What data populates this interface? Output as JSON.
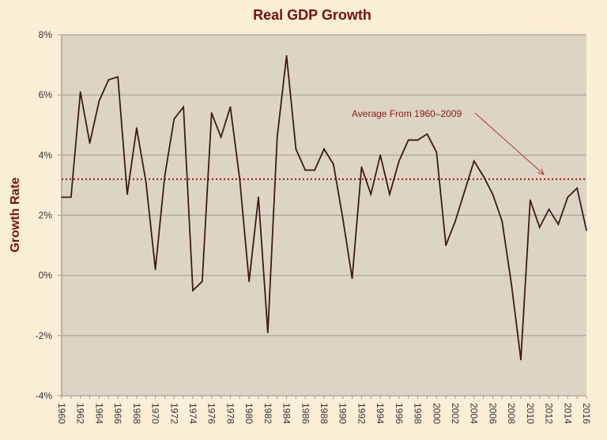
{
  "chart_data": {
    "type": "line",
    "title": "Real GDP Growth",
    "xlabel": "",
    "ylabel": "Growth Rate",
    "ylim": [
      -4,
      8
    ],
    "yticks": [
      -4,
      -2,
      0,
      2,
      4,
      6,
      8
    ],
    "ytick_labels": [
      "-4%",
      "-2%",
      "0%",
      "2%",
      "4%",
      "6%",
      "8%"
    ],
    "xlim": [
      1960,
      2016
    ],
    "xtick_labels": [
      "1960",
      "1962",
      "1964",
      "1966",
      "1968",
      "1970",
      "1972",
      "1974",
      "1976",
      "1978",
      "1980",
      "1982",
      "1984",
      "1986",
      "1988",
      "1990",
      "1992",
      "1994",
      "1996",
      "1998",
      "2000",
      "2002",
      "2004",
      "2006",
      "2008",
      "2010",
      "2012",
      "2014",
      "2016"
    ],
    "grid": true,
    "legend": "none",
    "series": [
      {
        "name": "Real GDP Growth",
        "color": "#3b1a1a",
        "x": [
          1960,
          1961,
          1962,
          1963,
          1964,
          1965,
          1966,
          1967,
          1968,
          1969,
          1970,
          1971,
          1972,
          1973,
          1974,
          1975,
          1976,
          1977,
          1978,
          1979,
          1980,
          1981,
          1982,
          1983,
          1984,
          1985,
          1986,
          1987,
          1988,
          1989,
          1990,
          1991,
          1992,
          1993,
          1994,
          1995,
          1996,
          1997,
          1998,
          1999,
          2000,
          2001,
          2002,
          2003,
          2004,
          2005,
          2006,
          2007,
          2008,
          2009,
          2010,
          2011,
          2012,
          2013,
          2014,
          2015,
          2016
        ],
        "values": [
          2.6,
          2.6,
          6.1,
          4.4,
          5.8,
          6.5,
          6.6,
          2.7,
          4.9,
          3.1,
          0.2,
          3.3,
          5.2,
          5.6,
          -0.5,
          -0.2,
          5.4,
          4.6,
          5.6,
          3.2,
          -0.2,
          2.6,
          -1.9,
          4.6,
          7.3,
          4.2,
          3.5,
          3.5,
          4.2,
          3.7,
          1.9,
          -0.1,
          3.6,
          2.7,
          4.0,
          2.7,
          3.8,
          4.5,
          4.5,
          4.7,
          4.1,
          1.0,
          1.8,
          2.8,
          3.8,
          3.3,
          2.7,
          1.8,
          -0.3,
          -2.8,
          2.5,
          1.6,
          2.2,
          1.7,
          2.6,
          2.9,
          1.5
        ]
      }
    ],
    "reference_line": {
      "name": "Average From 1960–2009",
      "value": 3.2,
      "color": "#a01c1c",
      "style": "dotted"
    },
    "annotations": [
      {
        "text": "Average  From  1960–2009",
        "points_to": "average-line",
        "color": "#8b1a1a"
      }
    ]
  },
  "colors": {
    "page_background": "#fbefd8",
    "plot_background": "#ddd5c3",
    "gridline": "#a8a49c",
    "title": "#7a0f0f"
  }
}
